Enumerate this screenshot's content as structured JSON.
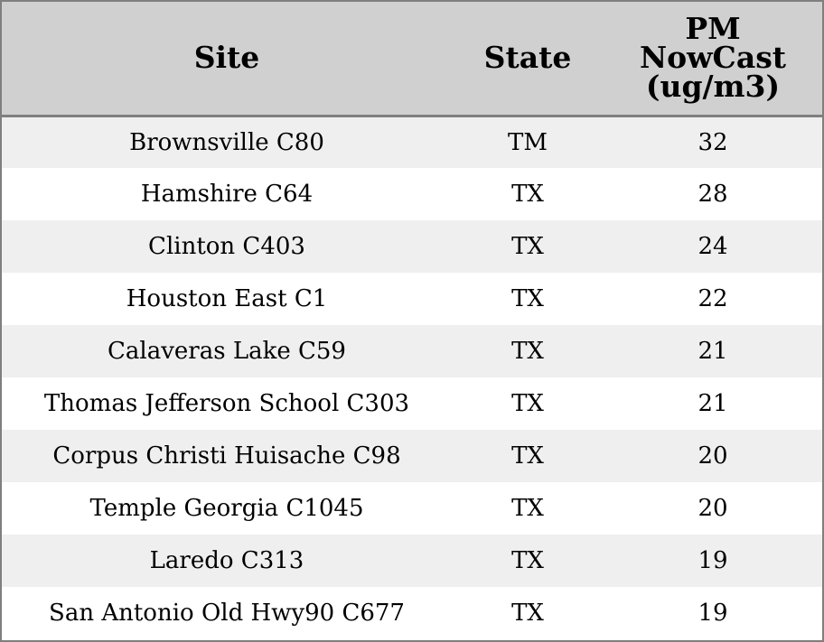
{
  "headers": {
    "site": "Site",
    "state": "State",
    "pm_line1": "PM",
    "pm_line2": "NowCast",
    "pm_line3": "(ug/m3)"
  },
  "rows": [
    {
      "site": "Brownsville C80",
      "state": "TM",
      "pm": "32"
    },
    {
      "site": "Hamshire C64",
      "state": "TX",
      "pm": "28"
    },
    {
      "site": "Clinton C403",
      "state": "TX",
      "pm": "24"
    },
    {
      "site": "Houston East C1",
      "state": "TX",
      "pm": "22"
    },
    {
      "site": "Calaveras Lake C59",
      "state": "TX",
      "pm": "21"
    },
    {
      "site": "Thomas Jefferson School C303",
      "state": "TX",
      "pm": "21"
    },
    {
      "site": "Corpus Christi Huisache C98",
      "state": "TX",
      "pm": "20"
    },
    {
      "site": "Temple Georgia C1045",
      "state": "TX",
      "pm": "20"
    },
    {
      "site": "Laredo C313",
      "state": "TX",
      "pm": "19"
    },
    {
      "site": "San Antonio Old Hwy90 C677",
      "state": "TX",
      "pm": "19"
    }
  ],
  "colors": {
    "header_bg": "#d0d0d0",
    "row_odd_bg": "#efefef",
    "row_even_bg": "#ffffff",
    "border": "#7f7f7f"
  }
}
